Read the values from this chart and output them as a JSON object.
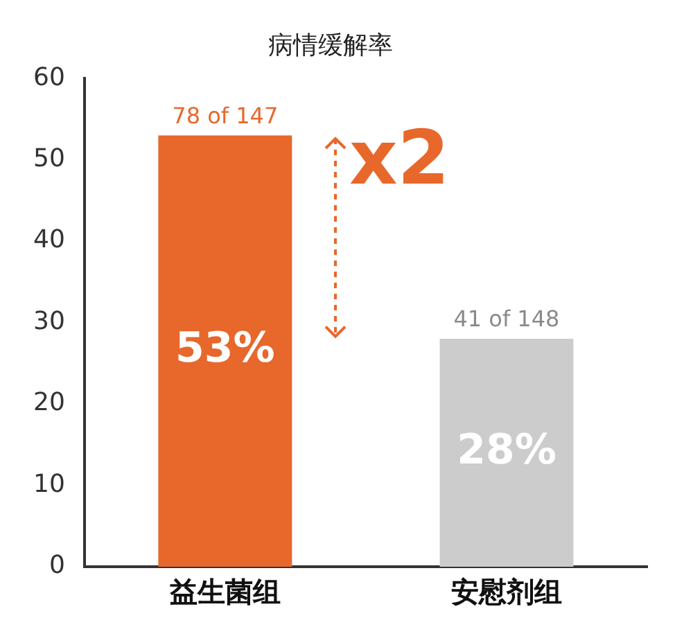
{
  "chart_data": {
    "type": "bar",
    "title": "病情缓解率",
    "categories": [
      "益生菌组",
      "安慰剂组"
    ],
    "values": [
      53,
      28
    ],
    "colors": [
      "#e8672b",
      "#cccccc"
    ],
    "value_labels": [
      "53%",
      "28%"
    ],
    "annotations": [
      {
        "text": "78 of 147",
        "x": "益生菌组",
        "y": 53
      },
      {
        "text": "41 of 148",
        "x": "安慰剂组",
        "y": 28
      },
      "x2"
    ],
    "ylim": [
      0,
      60
    ],
    "yticks": [
      0,
      10,
      20,
      30,
      40,
      50,
      60
    ],
    "grid": false,
    "legend": false
  }
}
